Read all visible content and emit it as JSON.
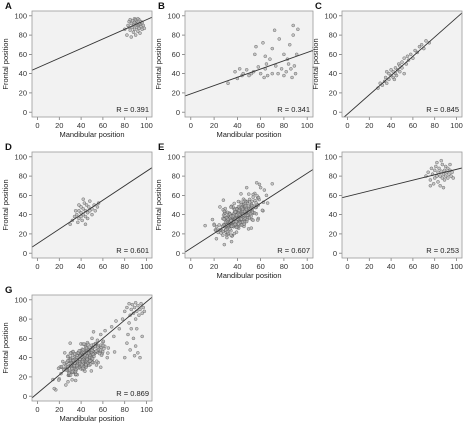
{
  "figure": {
    "panel_count": 7
  },
  "chart_data": [
    {
      "panel": "A",
      "type": "scatter",
      "xlabel": "Mandibular position",
      "ylabel": "Frontal position",
      "xlim": [
        -5,
        105
      ],
      "ylim": [
        -5,
        105
      ],
      "xticks": [
        0,
        20,
        40,
        60,
        80,
        100
      ],
      "yticks": [
        0,
        20,
        40,
        60,
        80,
        100
      ],
      "grid": false,
      "r_label": "R = 0.391",
      "regression": {
        "intercept": 46,
        "slope": 0.5
      },
      "points": [
        [
          80,
          86
        ],
        [
          82,
          80
        ],
        [
          83,
          90
        ],
        [
          84,
          94
        ],
        [
          85,
          85
        ],
        [
          86,
          92
        ],
        [
          86,
          78
        ],
        [
          87,
          88
        ],
        [
          87,
          95
        ],
        [
          88,
          83
        ],
        [
          88,
          90
        ],
        [
          89,
          97
        ],
        [
          89,
          86
        ],
        [
          90,
          92
        ],
        [
          90,
          80
        ],
        [
          91,
          88
        ],
        [
          91,
          95
        ],
        [
          92,
          84
        ],
        [
          92,
          90
        ],
        [
          93,
          96
        ],
        [
          93,
          87
        ],
        [
          94,
          91
        ],
        [
          94,
          82
        ],
        [
          95,
          89
        ],
        [
          95,
          94
        ],
        [
          96,
          86
        ],
        [
          96,
          93
        ],
        [
          97,
          90
        ],
        [
          98,
          87
        ],
        [
          85,
          96
        ],
        [
          90,
          96
        ],
        [
          92,
          97
        ],
        [
          84,
          88
        ],
        [
          89,
          93
        ],
        [
          91,
          91
        ],
        [
          93,
          92
        ]
      ]
    },
    {
      "panel": "B",
      "type": "scatter",
      "xlabel": "Mandibular position",
      "ylabel": "Frontal position",
      "xlim": [
        -5,
        105
      ],
      "ylim": [
        -5,
        105
      ],
      "xticks": [
        0,
        20,
        40,
        60,
        80,
        100
      ],
      "yticks": [
        0,
        20,
        40,
        60,
        80,
        100
      ],
      "grid": false,
      "r_label": "R = 0.341",
      "regression": {
        "intercept": 19,
        "slope": 0.43
      },
      "points": [
        [
          32,
          30
        ],
        [
          38,
          42
        ],
        [
          40,
          35
        ],
        [
          42,
          45
        ],
        [
          44,
          38
        ],
        [
          45,
          40
        ],
        [
          48,
          44
        ],
        [
          50,
          38
        ],
        [
          52,
          40
        ],
        [
          54,
          42
        ],
        [
          55,
          60
        ],
        [
          56,
          68
        ],
        [
          58,
          47
        ],
        [
          60,
          40
        ],
        [
          62,
          72
        ],
        [
          63,
          36
        ],
        [
          64,
          45
        ],
        [
          65,
          50
        ],
        [
          66,
          38
        ],
        [
          68,
          55
        ],
        [
          70,
          40
        ],
        [
          72,
          85
        ],
        [
          73,
          48
        ],
        [
          75,
          40
        ],
        [
          76,
          76
        ],
        [
          78,
          45
        ],
        [
          80,
          60
        ],
        [
          80,
          38
        ],
        [
          82,
          42
        ],
        [
          83,
          55
        ],
        [
          84,
          50
        ],
        [
          85,
          70
        ],
        [
          86,
          45
        ],
        [
          87,
          36
        ],
        [
          88,
          80
        ],
        [
          89,
          48
        ],
        [
          90,
          40
        ],
        [
          91,
          60
        ],
        [
          92,
          86
        ],
        [
          88,
          90
        ],
        [
          70,
          66
        ],
        [
          64,
          58
        ]
      ]
    },
    {
      "panel": "C",
      "type": "scatter",
      "xlabel": "",
      "ylabel": "Frontal position",
      "xlim": [
        -5,
        105
      ],
      "ylim": [
        -5,
        105
      ],
      "xticks": [
        0,
        20,
        40,
        60,
        80,
        100
      ],
      "yticks": [
        0,
        20,
        40,
        60,
        80,
        100
      ],
      "grid": false,
      "r_label": "R = 0.845",
      "regression": {
        "intercept": -2,
        "slope": 1.0
      },
      "points": [
        [
          28,
          25
        ],
        [
          30,
          30
        ],
        [
          32,
          28
        ],
        [
          34,
          32
        ],
        [
          35,
          36
        ],
        [
          36,
          30
        ],
        [
          38,
          34
        ],
        [
          38,
          40
        ],
        [
          40,
          38
        ],
        [
          40,
          44
        ],
        [
          42,
          36
        ],
        [
          42,
          42
        ],
        [
          44,
          40
        ],
        [
          44,
          46
        ],
        [
          45,
          38
        ],
        [
          46,
          44
        ],
        [
          47,
          50
        ],
        [
          48,
          42
        ],
        [
          48,
          48
        ],
        [
          50,
          46
        ],
        [
          50,
          52
        ],
        [
          52,
          40
        ],
        [
          52,
          56
        ],
        [
          54,
          50
        ],
        [
          55,
          58
        ],
        [
          56,
          54
        ],
        [
          58,
          60
        ],
        [
          60,
          56
        ],
        [
          62,
          64
        ],
        [
          64,
          62
        ],
        [
          66,
          68
        ],
        [
          68,
          70
        ],
        [
          70,
          66
        ],
        [
          72,
          74
        ],
        [
          75,
          72
        ],
        [
          36,
          42
        ],
        [
          43,
          34
        ]
      ]
    },
    {
      "panel": "D",
      "type": "scatter",
      "xlabel": "",
      "ylabel": "Frontal position",
      "xlim": [
        -5,
        105
      ],
      "ylim": [
        -5,
        105
      ],
      "xticks": [
        0,
        20,
        40,
        60,
        80,
        100
      ],
      "yticks": [
        0,
        20,
        40,
        60,
        80,
        100
      ],
      "grid": false,
      "r_label": "R = 0.601",
      "regression": {
        "intercept": 10,
        "slope": 0.75
      },
      "points": [
        [
          30,
          30
        ],
        [
          32,
          34
        ],
        [
          34,
          38
        ],
        [
          36,
          40
        ],
        [
          37,
          32
        ],
        [
          38,
          36
        ],
        [
          38,
          44
        ],
        [
          40,
          38
        ],
        [
          40,
          42
        ],
        [
          40,
          48
        ],
        [
          41,
          34
        ],
        [
          42,
          40
        ],
        [
          42,
          46
        ],
        [
          43,
          52
        ],
        [
          44,
          38
        ],
        [
          44,
          44
        ],
        [
          45,
          50
        ],
        [
          46,
          42
        ],
        [
          46,
          36
        ],
        [
          47,
          48
        ],
        [
          48,
          44
        ],
        [
          48,
          54
        ],
        [
          50,
          46
        ],
        [
          50,
          40
        ],
        [
          52,
          50
        ],
        [
          53,
          44
        ],
        [
          55,
          48
        ],
        [
          56,
          52
        ],
        [
          38,
          50
        ],
        [
          35,
          44
        ],
        [
          44,
          30
        ],
        [
          42,
          56
        ]
      ]
    },
    {
      "panel": "E",
      "type": "scatter",
      "xlabel": "Mandibular position",
      "ylabel": "Frontal position",
      "xlim": [
        -5,
        105
      ],
      "ylim": [
        -5,
        105
      ],
      "xticks": [
        0,
        20,
        40,
        60,
        80,
        100
      ],
      "yticks": [
        0,
        20,
        40,
        60,
        80,
        100
      ],
      "grid": false,
      "r_label": "R = 0.607",
      "regression": {
        "intercept": 5,
        "slope": 0.78
      },
      "cloud": {
        "n": 320,
        "cx": 40,
        "cy": 37,
        "sx": 8,
        "sy": 9,
        "rho": 0.6,
        "seed": 11
      },
      "points": [
        [
          22,
          15
        ],
        [
          25,
          48
        ],
        [
          28,
          55
        ],
        [
          30,
          22
        ],
        [
          55,
          62
        ],
        [
          58,
          50
        ],
        [
          60,
          68
        ],
        [
          62,
          44
        ],
        [
          65,
          60
        ],
        [
          70,
          72
        ],
        [
          52,
          26
        ],
        [
          48,
          68
        ],
        [
          35,
          12
        ],
        [
          20,
          30
        ],
        [
          66,
          52
        ],
        [
          58,
          36
        ]
      ]
    },
    {
      "panel": "F",
      "type": "scatter",
      "xlabel": "",
      "ylabel": "",
      "xlim": [
        -5,
        105
      ],
      "ylim": [
        -5,
        105
      ],
      "xticks": [
        0,
        20,
        40,
        60,
        80,
        100
      ],
      "yticks": [
        0,
        20,
        40,
        60,
        80,
        100
      ],
      "grid": false,
      "r_label": "R = 0.253",
      "regression": {
        "intercept": 59,
        "slope": 0.28
      },
      "points": [
        [
          72,
          80
        ],
        [
          74,
          84
        ],
        [
          76,
          76
        ],
        [
          77,
          88
        ],
        [
          78,
          82
        ],
        [
          79,
          72
        ],
        [
          80,
          86
        ],
        [
          80,
          78
        ],
        [
          81,
          90
        ],
        [
          82,
          80
        ],
        [
          83,
          84
        ],
        [
          83,
          74
        ],
        [
          84,
          88
        ],
        [
          85,
          80
        ],
        [
          85,
          70
        ],
        [
          86,
          85
        ],
        [
          87,
          78
        ],
        [
          87,
          92
        ],
        [
          88,
          82
        ],
        [
          89,
          86
        ],
        [
          89,
          76
        ],
        [
          90,
          80
        ],
        [
          90,
          90
        ],
        [
          91,
          84
        ],
        [
          92,
          78
        ],
        [
          92,
          88
        ],
        [
          93,
          82
        ],
        [
          94,
          86
        ],
        [
          95,
          80
        ],
        [
          96,
          84
        ],
        [
          97,
          78
        ],
        [
          82,
          94
        ],
        [
          88,
          68
        ],
        [
          76,
          70
        ],
        [
          94,
          92
        ],
        [
          86,
          96
        ]
      ]
    },
    {
      "panel": "G",
      "type": "scatter",
      "xlabel": "Mandibular position",
      "ylabel": "Frontal position",
      "xlim": [
        -5,
        105
      ],
      "ylim": [
        -5,
        105
      ],
      "xticks": [
        0,
        20,
        40,
        60,
        80,
        100
      ],
      "yticks": [
        0,
        20,
        40,
        60,
        80,
        100
      ],
      "grid": false,
      "r_label": "R = 0.869",
      "regression": {
        "intercept": 3,
        "slope": 0.95
      },
      "cloud": {
        "n": 300,
        "cx": 40,
        "cy": 37,
        "sx": 9,
        "sy": 9,
        "rho": 0.65,
        "seed": 23
      },
      "points": [
        [
          78,
          80
        ],
        [
          80,
          88
        ],
        [
          82,
          92
        ],
        [
          84,
          96
        ],
        [
          85,
          84
        ],
        [
          86,
          90
        ],
        [
          87,
          95
        ],
        [
          88,
          86
        ],
        [
          89,
          92
        ],
        [
          90,
          80
        ],
        [
          90,
          97
        ],
        [
          91,
          88
        ],
        [
          92,
          94
        ],
        [
          93,
          84
        ],
        [
          94,
          90
        ],
        [
          95,
          96
        ],
        [
          96,
          86
        ],
        [
          97,
          92
        ],
        [
          98,
          88
        ],
        [
          84,
          76
        ],
        [
          86,
          70
        ],
        [
          88,
          60
        ],
        [
          90,
          52
        ],
        [
          92,
          45
        ],
        [
          85,
          48
        ],
        [
          80,
          40
        ],
        [
          82,
          55
        ],
        [
          94,
          40
        ],
        [
          96,
          62
        ],
        [
          91,
          70
        ],
        [
          89,
          42
        ],
        [
          83,
          64
        ],
        [
          60,
          56
        ],
        [
          62,
          68
        ],
        [
          65,
          50
        ],
        [
          58,
          64
        ],
        [
          55,
          58
        ],
        [
          68,
          72
        ],
        [
          70,
          62
        ],
        [
          72,
          78
        ],
        [
          50,
          60
        ],
        [
          52,
          45
        ],
        [
          75,
          70
        ],
        [
          64,
          40
        ],
        [
          58,
          30
        ],
        [
          30,
          55
        ],
        [
          25,
          45
        ],
        [
          20,
          18
        ],
        [
          22,
          30
        ],
        [
          28,
          15
        ]
      ]
    }
  ]
}
